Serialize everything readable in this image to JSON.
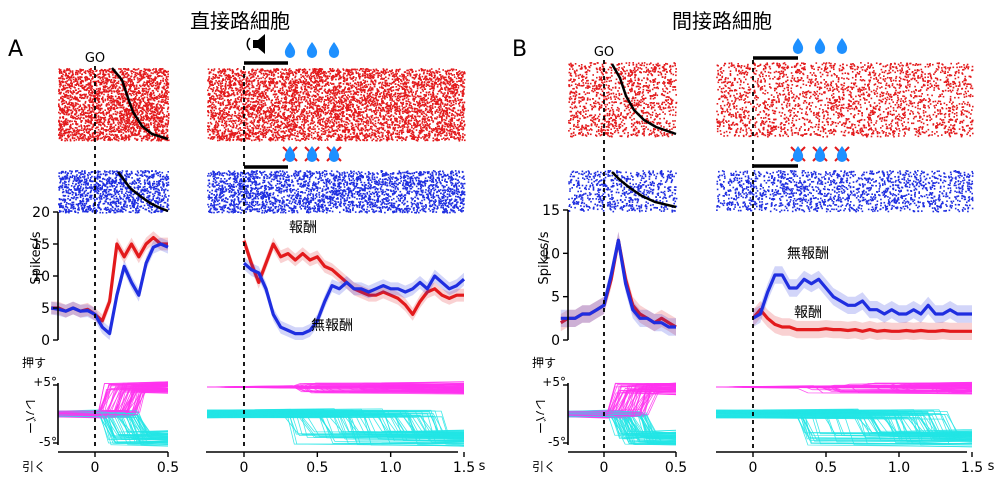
{
  "title_left": "直接路細胞",
  "title_right": "間接路細胞",
  "panel_a": "A",
  "panel_b": "B",
  "go_label": "GO",
  "unit_s": "s",
  "ylabel_rate": "Spikes/s",
  "lever_label": "レバー",
  "push_label": "押す",
  "pull_label": "引く",
  "reward_label": "報酬",
  "noreward_label": "無報酬",
  "colors": {
    "reward": "#e31a1c",
    "noreward": "#1f2ee0",
    "push": "#ff33ee",
    "pull": "#22e5e5",
    "sort": "#000000",
    "drop": "#1e90ff"
  },
  "icons": {
    "speaker": "speaker-icon",
    "drop": "water-drop-icon",
    "cross": "cross-icon"
  },
  "chart_data": [
    {
      "panel": "A",
      "type": "line",
      "title": "直接路細胞",
      "ylabel": "Spikes/s",
      "ylim": [
        0,
        20
      ],
      "yticks": [
        "0",
        "5",
        "10",
        "15",
        "20"
      ],
      "xticks_left": [
        "0",
        "0.5"
      ],
      "xticks_right": [
        "0",
        "0.5",
        "1.0",
        "1.5"
      ],
      "left": {
        "x": [
          -0.3,
          -0.25,
          -0.2,
          -0.15,
          -0.1,
          -0.05,
          0,
          0.05,
          0.1,
          0.15,
          0.2,
          0.25,
          0.3,
          0.35,
          0.4,
          0.45,
          0.5
        ],
        "series": [
          {
            "name": "報酬",
            "values": [
              5,
              5,
              4.5,
              5,
              4.5,
              4.8,
              4,
              3,
              6,
              15,
              13,
              15,
              13,
              15,
              16,
              15,
              15
            ]
          },
          {
            "name": "無報酬",
            "values": [
              5,
              4.8,
              4.5,
              5,
              4.5,
              4.6,
              4,
              2,
              1,
              7,
              11.5,
              9,
              7,
              12,
              14.5,
              15,
              14.5
            ]
          }
        ]
      },
      "right": {
        "x": [
          0,
          0.05,
          0.1,
          0.15,
          0.2,
          0.25,
          0.3,
          0.35,
          0.4,
          0.45,
          0.5,
          0.55,
          0.6,
          0.65,
          0.7,
          0.75,
          0.8,
          0.85,
          0.9,
          0.95,
          1.0,
          1.05,
          1.1,
          1.15,
          1.2,
          1.25,
          1.3,
          1.35,
          1.4,
          1.45,
          1.5
        ],
        "series": [
          {
            "name": "報酬",
            "values": [
              15.5,
              12,
              9,
              12,
              15,
              13,
              13.5,
              12.5,
              13.5,
              12.5,
              13,
              11.5,
              11,
              10,
              9,
              8,
              7.5,
              7,
              7,
              7.5,
              7,
              6.5,
              5.5,
              4,
              6,
              7.5,
              8,
              7,
              6.5,
              7,
              7
            ]
          },
          {
            "name": "無報酬",
            "values": [
              12,
              11,
              10.5,
              8,
              4,
              2,
              1.5,
              1,
              1,
              1.5,
              3,
              6,
              8.5,
              8,
              9,
              8,
              8,
              7.5,
              8,
              8.5,
              8,
              8,
              7.5,
              8,
              9,
              8,
              10,
              9,
              8,
              8.5,
              9.5
            ]
          }
        ]
      }
    },
    {
      "panel": "B",
      "type": "line",
      "title": "間接路細胞",
      "ylabel": "Spikes/s",
      "ylim": [
        0,
        15
      ],
      "yticks": [
        "0",
        "5",
        "10",
        "15"
      ],
      "xticks_left": [
        "0",
        "0.5"
      ],
      "xticks_right": [
        "0",
        "0.5",
        "1.0",
        "1.5"
      ],
      "left": {
        "x": [
          -0.3,
          -0.25,
          -0.2,
          -0.15,
          -0.1,
          -0.05,
          0,
          0.05,
          0.1,
          0.15,
          0.2,
          0.25,
          0.3,
          0.35,
          0.4,
          0.45,
          0.5
        ],
        "series": [
          {
            "name": "報酬",
            "values": [
              2,
              2.5,
              2.5,
              3,
              3,
              3.5,
              4,
              7,
              11.5,
              7,
              4,
              3,
              2.5,
              2,
              2.5,
              2,
              1.5
            ]
          },
          {
            "name": "無報酬",
            "values": [
              2.5,
              2.5,
              2.5,
              3,
              3,
              3.5,
              4,
              7.5,
              11.5,
              6.5,
              3.5,
              2.5,
              2.5,
              2,
              2,
              1.5,
              1.5
            ]
          }
        ]
      },
      "right": {
        "x": [
          0,
          0.05,
          0.1,
          0.15,
          0.2,
          0.25,
          0.3,
          0.35,
          0.4,
          0.45,
          0.5,
          0.55,
          0.6,
          0.65,
          0.7,
          0.75,
          0.8,
          0.85,
          0.9,
          0.95,
          1.0,
          1.05,
          1.1,
          1.15,
          1.2,
          1.25,
          1.3,
          1.35,
          1.4,
          1.45,
          1.5
        ],
        "series": [
          {
            "name": "報酬",
            "values": [
              2.5,
              3.5,
              2.5,
              1.8,
              1.5,
              1.5,
              1.2,
              1.2,
              1.2,
              1.2,
              1.3,
              1.2,
              1.2,
              1.1,
              1.2,
              1.0,
              1.2,
              1.0,
              1.1,
              1.0,
              1.0,
              1.1,
              1.0,
              1.1,
              1.0,
              1.0,
              1.1,
              1.0,
              1.0,
              1.0,
              1.0
            ]
          },
          {
            "name": "無報酬",
            "values": [
              2.5,
              3,
              5.5,
              7.5,
              7.5,
              6,
              6,
              7,
              6.5,
              7,
              6,
              5,
              4.5,
              4,
              4,
              4.5,
              3.5,
              3.5,
              3,
              3.5,
              3,
              3,
              3.5,
              3,
              4,
              3,
              3,
              3.5,
              3,
              3,
              3
            ]
          }
        ]
      }
    }
  ]
}
